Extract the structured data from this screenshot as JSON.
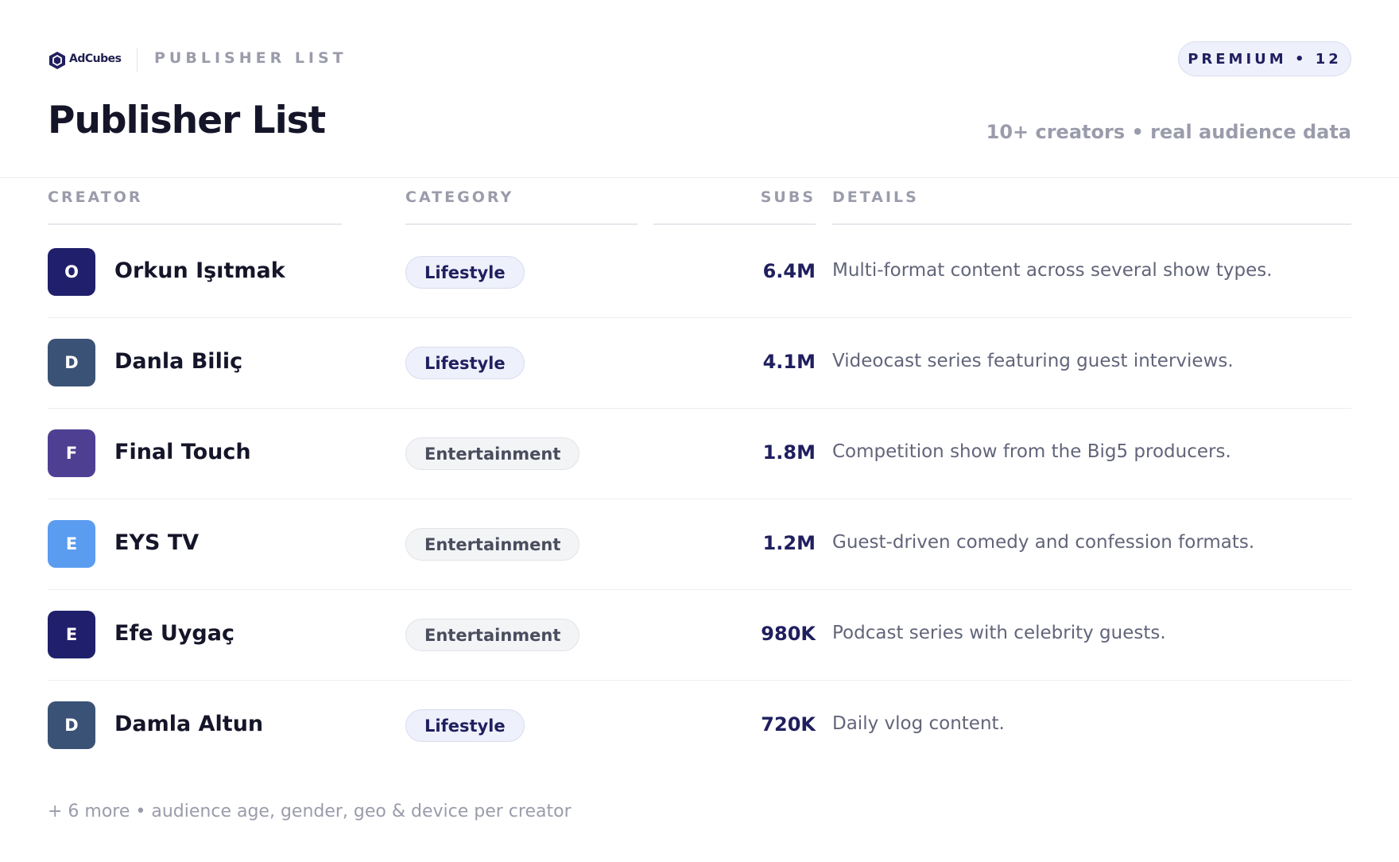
{
  "header": {
    "logo": "AdCubes",
    "section": "PUBLISHER LIST",
    "badge": "PREMIUM • 12",
    "title": "Publisher List",
    "subtitle": "10+ creators • real audience data"
  },
  "table": {
    "columns": [
      "CREATOR",
      "CATEGORY",
      "SUBS",
      "DETAILS"
    ],
    "rows": [
      {
        "initial": "O",
        "avatar_color": "#1f1f6b",
        "name": "Orkun Işıtmak",
        "category": "Lifestyle",
        "subs": "6.4M",
        "details": "Multi-format content across several show types."
      },
      {
        "initial": "D",
        "avatar_color": "#3a5276",
        "name": "Danla Biliç",
        "category": "Lifestyle",
        "subs": "4.1M",
        "details": "Videocast series featuring guest interviews."
      },
      {
        "initial": "F",
        "avatar_color": "#4f3f93",
        "name": "Final Touch",
        "category": "Entertainment",
        "subs": "1.8M",
        "details": "Competition show from the Big5 producers."
      },
      {
        "initial": "E",
        "avatar_color": "#5a9cf0",
        "name": "EYS TV",
        "category": "Entertainment",
        "subs": "1.2M",
        "details": "Guest-driven comedy and confession formats."
      },
      {
        "initial": "E",
        "avatar_color": "#1f1f6b",
        "name": "Efe Uygaç",
        "category": "Entertainment",
        "subs": "980K",
        "details": "Podcast series with celebrity guests."
      },
      {
        "initial": "D",
        "avatar_color": "#3a5276",
        "name": "Damla Altun",
        "category": "Lifestyle",
        "subs": "720K",
        "details": "Daily vlog content."
      }
    ]
  },
  "footer": "+ 6 more • audience age, gender, geo & device per creator"
}
